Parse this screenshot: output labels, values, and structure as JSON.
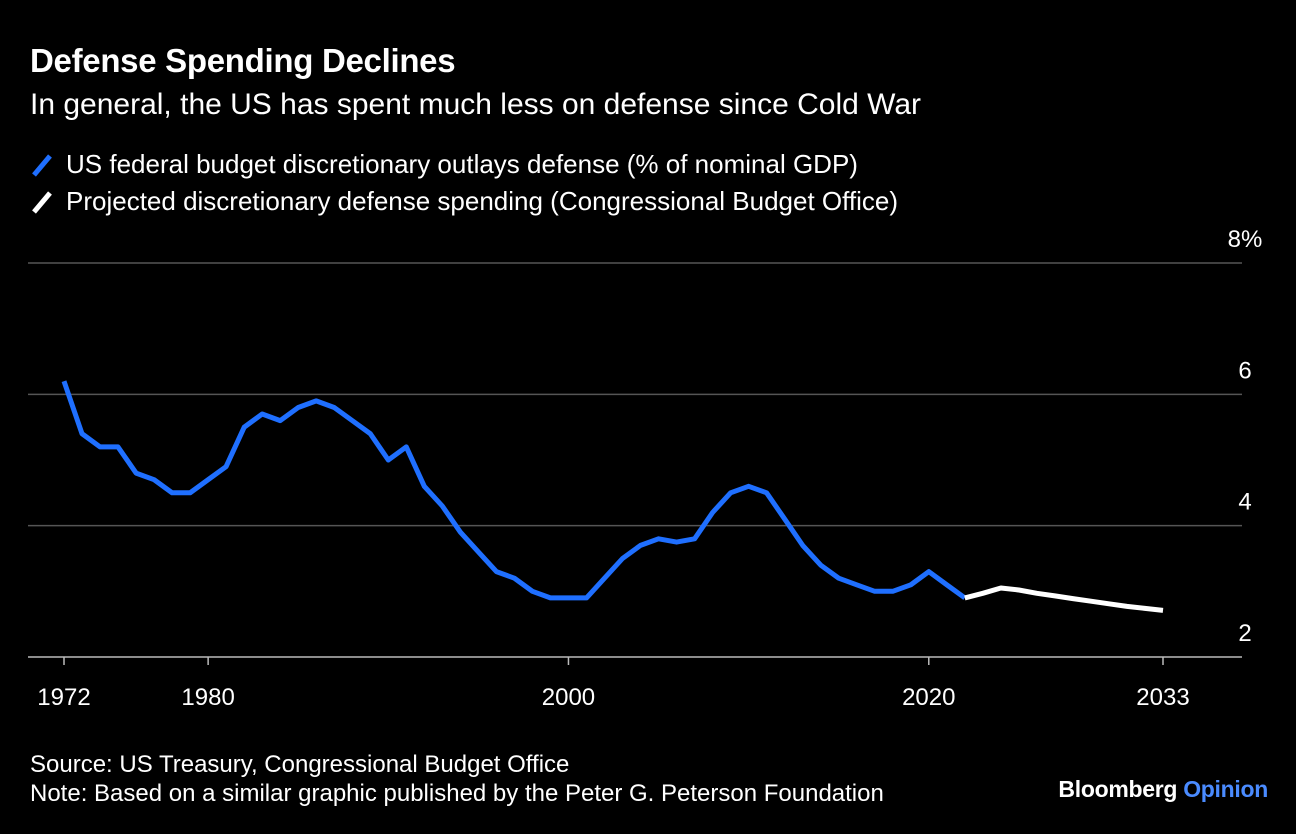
{
  "chart_data": {
    "type": "line",
    "title": "Defense Spending Declines",
    "subtitle": "In general, the US has spent much less on defense since Cold War",
    "xlim": [
      1970,
      2035
    ],
    "ylim": [
      2,
      8
    ],
    "x_ticks": [
      {
        "value": 1972,
        "label": "1972"
      },
      {
        "value": 1980,
        "label": "1980"
      },
      {
        "value": 2000,
        "label": "2000"
      },
      {
        "value": 2020,
        "label": "2020"
      },
      {
        "value": 2033,
        "label": "2033"
      }
    ],
    "y_ticks": [
      {
        "value": 8,
        "label": "8%"
      },
      {
        "value": 6,
        "label": "6"
      },
      {
        "value": 4,
        "label": "4"
      },
      {
        "value": 2,
        "label": "2"
      }
    ],
    "grid": true,
    "legend_placement": "top-left",
    "series": [
      {
        "name": "US federal budget discretionary outlays defense (% of nominal GDP)",
        "color": "#1f6fff",
        "x": [
          1972,
          1973,
          1974,
          1975,
          1976,
          1977,
          1978,
          1979,
          1980,
          1981,
          1982,
          1983,
          1984,
          1985,
          1986,
          1987,
          1988,
          1989,
          1990,
          1991,
          1992,
          1993,
          1994,
          1995,
          1996,
          1997,
          1998,
          1999,
          2000,
          2001,
          2002,
          2003,
          2004,
          2005,
          2006,
          2007,
          2008,
          2009,
          2010,
          2011,
          2012,
          2013,
          2014,
          2015,
          2016,
          2017,
          2018,
          2019,
          2020,
          2021,
          2022
        ],
        "y": [
          6.2,
          5.4,
          5.2,
          5.2,
          4.8,
          4.7,
          4.5,
          4.5,
          4.7,
          4.9,
          5.5,
          5.7,
          5.6,
          5.8,
          5.9,
          5.8,
          5.6,
          5.4,
          5.0,
          5.2,
          4.6,
          4.3,
          3.9,
          3.6,
          3.3,
          3.2,
          3.0,
          2.9,
          2.9,
          2.9,
          3.2,
          3.5,
          3.7,
          3.8,
          3.75,
          3.8,
          4.2,
          4.5,
          4.6,
          4.5,
          4.1,
          3.7,
          3.4,
          3.2,
          3.1,
          3.0,
          3.0,
          3.1,
          3.3,
          3.1,
          2.9
        ]
      },
      {
        "name": "Projected discretionary defense spending (Congressional Budget Office)",
        "color": "#ffffff",
        "x": [
          2022,
          2023,
          2024,
          2025,
          2026,
          2027,
          2028,
          2029,
          2030,
          2031,
          2032,
          2033
        ],
        "y": [
          2.9,
          2.97,
          3.05,
          3.02,
          2.97,
          2.93,
          2.89,
          2.85,
          2.81,
          2.77,
          2.74,
          2.71
        ]
      }
    ]
  },
  "footer": {
    "source": "Source: US Treasury, Congressional Budget Office",
    "note": "Note: Based on a similar graphic published by the Peter G. Peterson Foundation"
  },
  "brand": {
    "name": "Bloomberg",
    "section": "Opinion"
  },
  "colors": {
    "background": "#000000",
    "grid": "#555555",
    "accent": "#1f6fff"
  }
}
